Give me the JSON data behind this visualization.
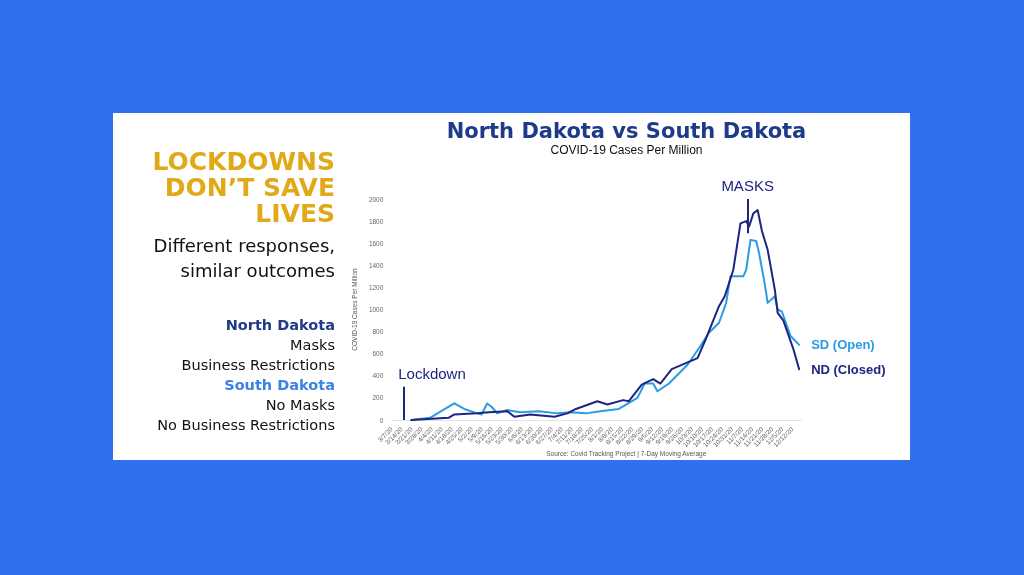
{
  "chart_data": [
    {
      "type": "other",
      "title": "LOCKDOWNS DON’T SAVE LIVES",
      "subtitle": "Different responses, similar outcomes",
      "annotations": [
        "North Dakota",
        "Masks",
        "Business Restrictions",
        "South Dakota",
        "No Masks",
        "No Business Restrictions"
      ]
    },
    {
      "type": "line",
      "title": "North Dakota vs South Dakota",
      "subtitle": "COVID-19 Cases Per Million",
      "ylabel": "COVID-19 Cases Per Million",
      "xlim": [
        "--03-07",
        "--12-19"
      ],
      "xticks": [
        {
          "value": "--03-07",
          "label": "3/7/20"
        },
        {
          "value": "--03-14",
          "label": "3/14/20"
        },
        {
          "value": "--03-21",
          "label": "3/21/20"
        },
        {
          "value": "--03-28",
          "label": "3/28/20"
        },
        {
          "value": "--04-04",
          "label": "4/4/20"
        },
        {
          "value": "--04-11",
          "label": "4/11/20"
        },
        {
          "value": "--04-18",
          "label": "4/18/20"
        },
        {
          "value": "--04-25",
          "label": "4/25/20"
        },
        {
          "value": "--05-02",
          "label": "5/2/20"
        },
        {
          "value": "--05-09",
          "label": "5/9/20"
        },
        {
          "value": "--05-16",
          "label": "5/16/20"
        },
        {
          "value": "--05-23",
          "label": "5/23/20"
        },
        {
          "value": "--05-30",
          "label": "5/30/20"
        },
        {
          "value": "--06-06",
          "label": "6/6/20"
        },
        {
          "value": "--06-13",
          "label": "6/13/20"
        },
        {
          "value": "--06-20",
          "label": "6/20/20"
        },
        {
          "value": "--06-27",
          "label": "6/27/20"
        },
        {
          "value": "--07-04",
          "label": "7/4/20"
        },
        {
          "value": "--07-11",
          "label": "7/11/20"
        },
        {
          "value": "--07-18",
          "label": "7/18/20"
        },
        {
          "value": "--07-25",
          "label": "7/25/20"
        },
        {
          "value": "--08-01",
          "label": "8/1/20"
        },
        {
          "value": "--08-08",
          "label": "8/8/20"
        },
        {
          "value": "--08-15",
          "label": "8/15/20"
        },
        {
          "value": "--08-22",
          "label": "8/22/20"
        },
        {
          "value": "--08-29",
          "label": "8/29/20"
        },
        {
          "value": "--09-05",
          "label": "9/5/20"
        },
        {
          "value": "--09-12",
          "label": "9/12/20"
        },
        {
          "value": "--09-19",
          "label": "9/19/20"
        },
        {
          "value": "--09-26",
          "label": "9/26/20"
        },
        {
          "value": "--10-03",
          "label": "10/3/20"
        },
        {
          "value": "--10-10",
          "label": "10/10/20"
        },
        {
          "value": "--10-17",
          "label": "10/17/20"
        },
        {
          "value": "--10-24",
          "label": "10/24/20"
        },
        {
          "value": "--10-31",
          "label": "10/31/20"
        },
        {
          "value": "--11-07",
          "label": "11/7/20"
        },
        {
          "value": "--11-14",
          "label": "11/14/20"
        },
        {
          "value": "--11-21",
          "label": "11/21/20"
        },
        {
          "value": "--11-28",
          "label": "11/28/20"
        },
        {
          "value": "--12-05",
          "label": "12/5/20"
        },
        {
          "value": "--12-12",
          "label": "12/12/20"
        }
      ],
      "ylim": [
        0,
        2000
      ],
      "yticks": [
        0,
        200,
        400,
        600,
        800,
        1000,
        1200,
        1400,
        1600,
        1800,
        2000
      ],
      "marker": "none",
      "line_style": "solid",
      "legend": false,
      "series": [
        {
          "name": "SD (Open)",
          "color": "#2b9be6",
          "x": [
            "--03-21",
            "--04-03",
            "--04-12",
            "--04-20",
            "--04-27",
            "--05-06",
            "--05-09",
            "--05-13",
            "--05-16",
            "--05-20",
            "--05-27",
            "--06-05",
            "--06-18",
            "--07-01",
            "--07-10",
            "--07-21",
            "--07-31",
            "--08-13",
            "--08-26",
            "--08-31",
            "--09-06",
            "--09-09",
            "--09-17",
            "--09-30",
            "--10-09",
            "--10-15",
            "--10-22",
            "--10-27",
            "--10-30",
            "--11-08",
            "--11-10",
            "--11-13",
            "--11-17",
            "--11-19",
            "--11-23",
            "--11-25",
            "--11-30",
            "--12-02",
            "--12-05",
            "--12-11",
            "--12-17"
          ],
          "values": [
            0,
            20,
            90,
            150,
            100,
            60,
            50,
            150,
            120,
            60,
            90,
            70,
            80,
            60,
            70,
            60,
            80,
            100,
            200,
            330,
            330,
            260,
            330,
            500,
            670,
            790,
            880,
            1060,
            1300,
            1300,
            1360,
            1630,
            1620,
            1510,
            1230,
            1060,
            1120,
            1000,
            980,
            760,
            680
          ]
        },
        {
          "name": "ND (Closed)",
          "color": "#1c2580",
          "x": [
            "--03-21",
            "--04-16",
            "--04-20",
            "--05-06",
            "--05-14",
            "--05-27",
            "--06-01",
            "--06-12",
            "--06-29",
            "--07-08",
            "--07-14",
            "--07-29",
            "--08-05",
            "--08-16",
            "--08-20",
            "--08-29",
            "--09-06",
            "--09-11",
            "--09-19",
            "--10-07",
            "--10-13",
            "--10-22",
            "--10-26",
            "--11-01",
            "--11-06",
            "--11-10",
            "--11-12",
            "--11-15",
            "--11-18",
            "--11-21",
            "--11-25",
            "--11-30",
            "--12-02",
            "--12-06",
            "--12-13",
            "--12-17"
          ],
          "values": [
            0,
            20,
            50,
            60,
            70,
            80,
            30,
            50,
            30,
            60,
            100,
            170,
            140,
            180,
            170,
            320,
            370,
            330,
            460,
            560,
            740,
            1030,
            1120,
            1360,
            1780,
            1800,
            1750,
            1870,
            1900,
            1710,
            1540,
            1180,
            970,
            900,
            640,
            460
          ]
        }
      ],
      "ref_lines": [
        {
          "axis": "x",
          "value": "--03-16",
          "label": "Lockdown",
          "color": "#1c2580",
          "line_style": "solid"
        },
        {
          "axis": "x",
          "value": "--11-11",
          "label": "MASKS",
          "color": "#1c2580",
          "line_style": "solid"
        }
      ],
      "annotations": [
        "Source: Covid Tracking Project | 7-Day Moving Average"
      ]
    }
  ]
}
